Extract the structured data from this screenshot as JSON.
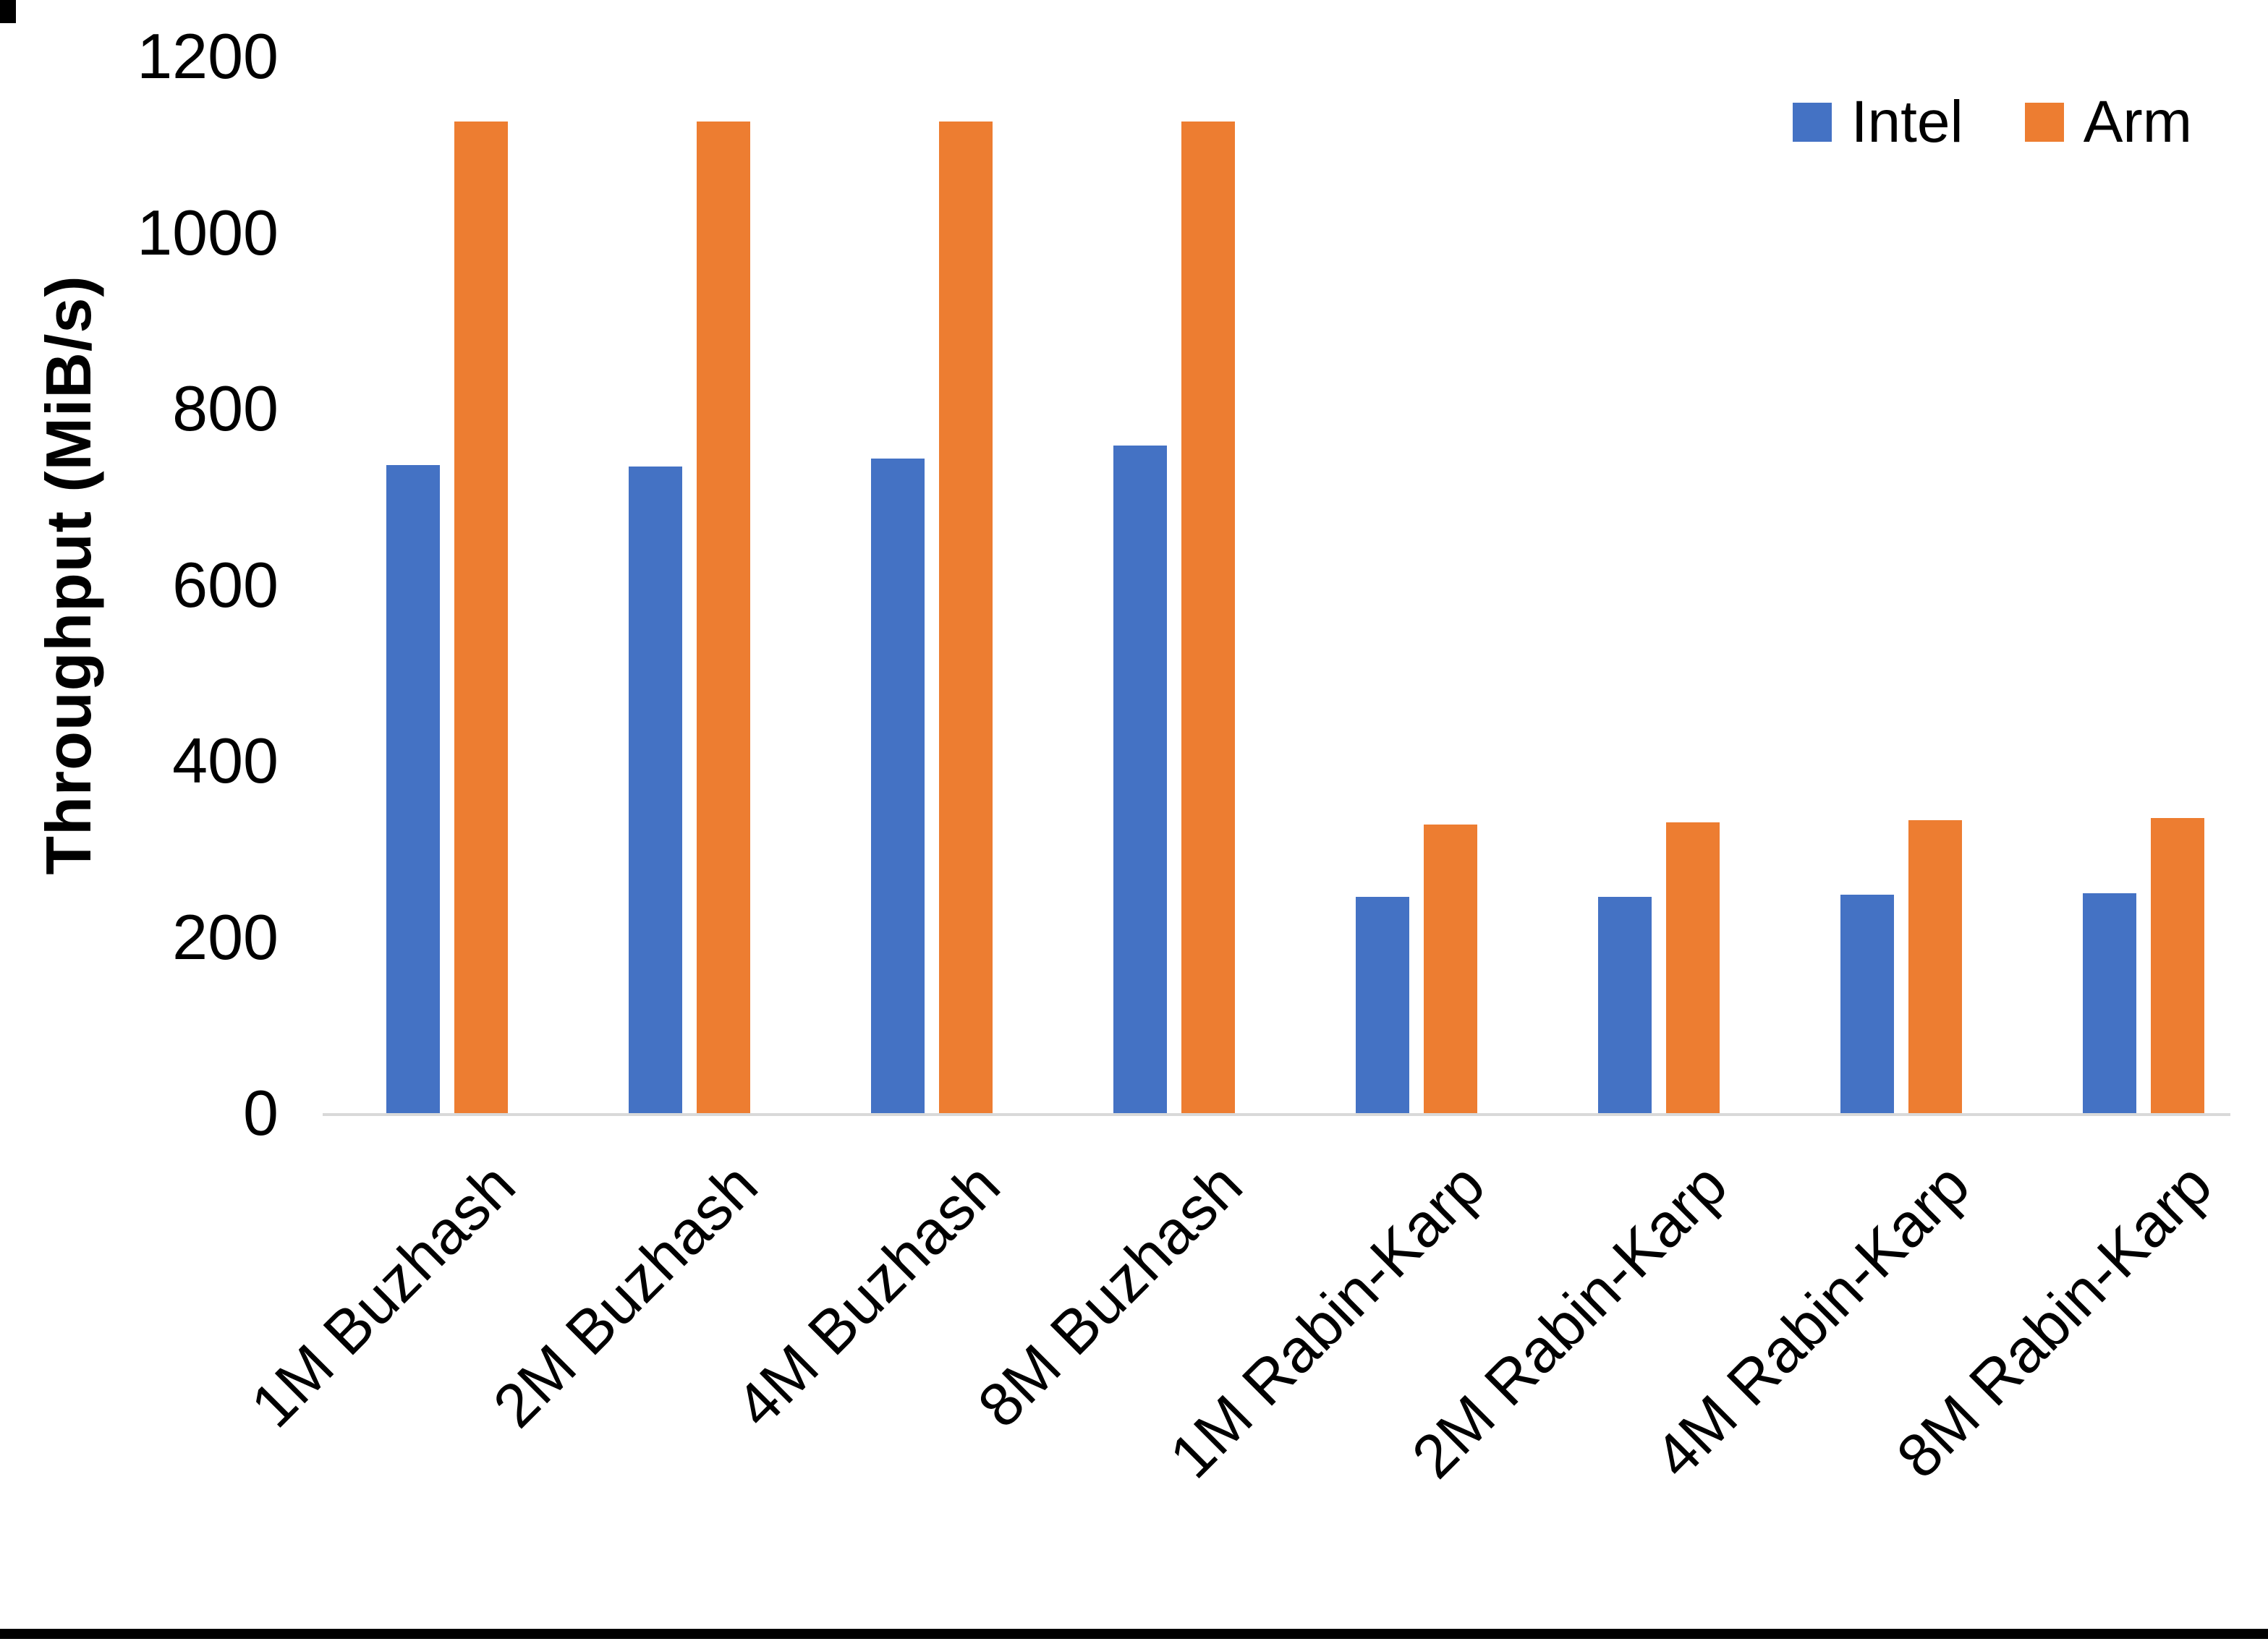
{
  "axes": {
    "y_title": "Throughput (MiB/s)",
    "y_ticks": [
      0,
      200,
      400,
      600,
      800,
      1000,
      1200
    ],
    "axis_line_color": "#d9d9d9",
    "text_color": "#000000"
  },
  "chart_data": {
    "type": "bar",
    "title": "",
    "xlabel": "",
    "ylabel": "Throughput (MiB/s)",
    "ylim": [
      0,
      1200
    ],
    "grid": false,
    "legend_position": "top-right",
    "categories": [
      "1M Buzhash",
      "2M Buzhash",
      "4M Buzhash",
      "8M Buzhash",
      "1M Rabin-Karp",
      "2M Rabin-Karp",
      "4M Rabin-Karp",
      "8M Rabin-Karp"
    ],
    "series": [
      {
        "name": "Intel",
        "color": "#4472C4",
        "values": [
          738,
          736,
          745,
          760,
          247,
          247,
          250,
          251
        ]
      },
      {
        "name": "Arm",
        "color": "#ED7D31",
        "values": [
          1128,
          1128,
          1128,
          1128,
          329,
          332,
          334,
          337
        ]
      }
    ]
  }
}
